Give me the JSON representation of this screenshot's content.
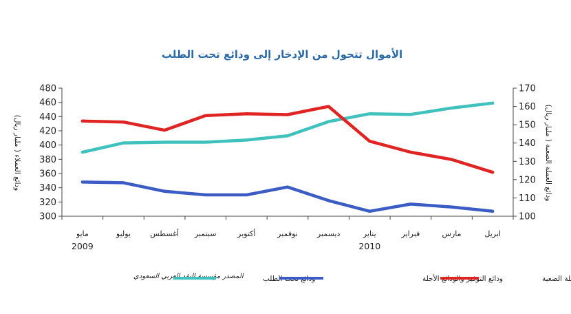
{
  "chart_data": {
    "type": "line",
    "title": "الأموال تتحول من الإدخار إلى ودائع تحت الطلب",
    "categories": [
      "مايو",
      "يوليو",
      "أغسطس",
      "سبتمبر",
      "أكتوبر",
      "نوفمبر",
      "ديسمبر",
      "يناير",
      "فبراير",
      "مارس",
      "ابريل"
    ],
    "years": [
      {
        "label": "2009",
        "at_category": "مايو"
      },
      {
        "label": "2010",
        "at_category": "يناير"
      }
    ],
    "left_axis": {
      "label": "ودائع العملاء ( مليار ريال)",
      "ylim": [
        300,
        480
      ],
      "ticks": [
        300,
        320,
        340,
        360,
        380,
        400,
        420,
        440,
        460,
        480
      ]
    },
    "right_axis": {
      "label": "ودائع العملة الصعبة ( مليار ريال)",
      "ylim": [
        100,
        170
      ],
      "ticks": [
        100,
        110,
        120,
        130,
        140,
        150,
        160,
        170
      ]
    },
    "series": [
      {
        "name": "ودائع تحت الطلب",
        "axis": "left",
        "color": "#3fc1bd",
        "values": [
          390,
          403,
          404,
          404,
          407,
          413,
          433,
          444,
          443,
          452,
          459
        ]
      },
      {
        "name": "ودائع التوفير والودائع الأجلة",
        "axis": "left",
        "color": "#3a5cc4",
        "values": [
          348,
          347,
          335,
          330,
          330,
          341,
          322,
          307,
          317,
          313,
          307
        ]
      },
      {
        "name": "ودائع العملة الصعبة",
        "axis": "right",
        "color": "#e02424",
        "values": [
          152,
          151.5,
          147,
          155,
          156,
          155.5,
          160,
          141,
          135,
          131,
          124
        ]
      }
    ],
    "source": "المصدر مؤسسة النقد العربي السعودي"
  }
}
